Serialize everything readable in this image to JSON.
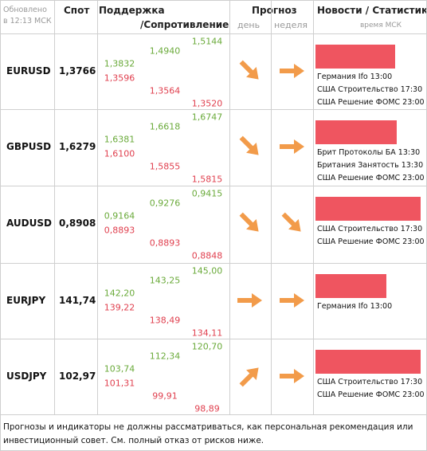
{
  "header": {
    "updated": "Обновлено в 12:13 МСК",
    "spot": "Спот",
    "support": "Поддержка",
    "resistance": "/Сопротивление",
    "forecast": "Прогноз",
    "day": "день",
    "week": "неделя",
    "news": "Новости / Статистика",
    "time_note": "время МСК"
  },
  "rows": [
    {
      "pair": "EURUSD",
      "spot": "1,3766",
      "support": [
        "1,3832",
        "1,4940",
        "1,5144"
      ],
      "resistance": [
        "1,3596",
        "1,3564",
        "1,3520"
      ],
      "news": [
        "Германия Ifo 13:00",
        "США Строительство 17:30",
        "США Решение ФОМС 23:00"
      ]
    },
    {
      "pair": "GBPUSD",
      "spot": "1,6279",
      "support": [
        "1,6381",
        "1,6618",
        "1,6747"
      ],
      "resistance": [
        "1,6100",
        "1,5855",
        "1,5815"
      ],
      "news": [
        "Брит Протоколы БА 13:30",
        "Британия Занятость 13:30",
        "США Решение ФОМС 23:00"
      ]
    },
    {
      "pair": "AUDUSD",
      "spot": "0,8908",
      "support": [
        "0,9164",
        "0,9276",
        "0,9415"
      ],
      "resistance": [
        "0,8893",
        "0,8893",
        "0,8848"
      ],
      "news": [
        "США Строительство 17:30",
        "США Решение ФОМС 23:00"
      ]
    },
    {
      "pair": "EURJPY",
      "spot": "141,74",
      "support": [
        "142,20",
        "143,25",
        "145,00"
      ],
      "resistance": [
        "139,22",
        "138,49",
        "134,11"
      ],
      "news": [
        "Германия Ifo 13:00"
      ]
    },
    {
      "pair": "USDJPY",
      "spot": "102,97",
      "support": [
        "103,74",
        "112,34",
        "120,70"
      ],
      "resistance": [
        "101,31",
        "99,91",
        "98,89"
      ],
      "news": [
        "США Строительство 17:30",
        "США Решение ФОМС 23:00"
      ]
    }
  ],
  "footer": "Прогнозы и индикаторы не должны рассматриваться, как персональная рекомендация или инвестиционный совет. См. полный отказ от рисков ниже."
}
